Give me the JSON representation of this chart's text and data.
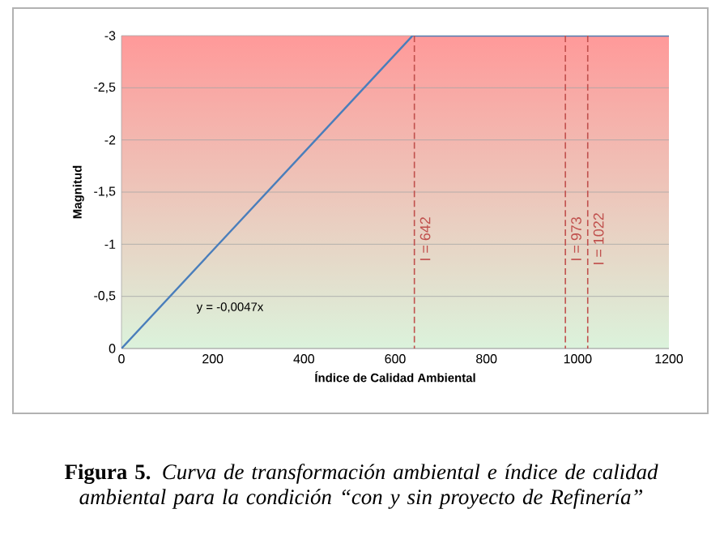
{
  "chart_data": {
    "type": "line",
    "xlabel": "Índice de Calidad Ambiental",
    "ylabel": "Magnitud",
    "x": [
      0,
      200,
      400,
      638,
      1200
    ],
    "series": [
      {
        "color": "#4a7ebb",
        "values": [
          0,
          -0.94,
          -1.88,
          -3,
          -3
        ]
      }
    ],
    "xlim": [
      0,
      1200
    ],
    "xticks": [
      0,
      200,
      400,
      600,
      800,
      1000,
      1200
    ],
    "ylim": [
      0,
      -3
    ],
    "yticks": [
      0,
      {
        "value": -0.5,
        "label": "-0,5"
      },
      -1,
      {
        "value": -1.5,
        "label": "-1,5"
      },
      -2,
      {
        "value": -2.5,
        "label": "-2,5"
      },
      -3
    ],
    "grid": "y",
    "line_style": "solid",
    "ref_lines": [
      {
        "axis": "x",
        "value": 642,
        "label": "I = 642",
        "color": "#c0504d",
        "line_style": "dashed"
      },
      {
        "axis": "x",
        "value": 973,
        "label": "I = 973",
        "color": "#c0504d",
        "line_style": "dashed"
      },
      {
        "axis": "x",
        "value": 1022,
        "label": "I = 1022",
        "color": "#c0504d",
        "line_style": "dashed"
      }
    ],
    "annotations": [
      "y = -0,0047x",
      "**Figura 5.** *Curva de transformación ambiental e índice de calidad ambiental para la condición “con y sin proyecto de Refinería”*"
    ]
  }
}
